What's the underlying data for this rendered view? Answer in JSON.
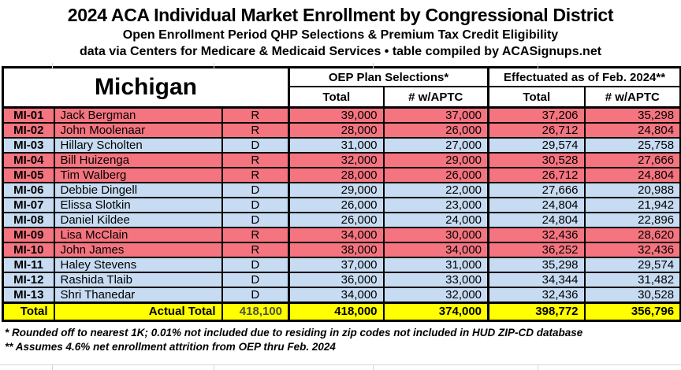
{
  "header": {
    "title": "2024 ACA Individual Market Enrollment by Congressional District",
    "subtitle1": "Open Enrollment Period QHP Selections & Premium Tax Credit Eligibility",
    "subtitle2": "data via Centers for Medicare & Medicaid Services • table compiled by ACASignups.net"
  },
  "chart_data": {
    "type": "table",
    "title": "2024 ACA Individual Market Enrollment by Congressional District",
    "state": "Michigan",
    "column_groups": [
      "OEP Plan Selections*",
      "Effectuated as of Feb. 2024**"
    ],
    "sub_headers": [
      "Total",
      "# w/APTC",
      "Total",
      "# w/APTC"
    ],
    "rows": [
      {
        "district": "MI-01",
        "rep": "Jack Bergman",
        "party": "R",
        "oep_total": "39,000",
        "oep_aptc": "37,000",
        "eff_total": "37,206",
        "eff_aptc": "35,298"
      },
      {
        "district": "MI-02",
        "rep": "John Moolenaar",
        "party": "R",
        "oep_total": "28,000",
        "oep_aptc": "26,000",
        "eff_total": "26,712",
        "eff_aptc": "24,804"
      },
      {
        "district": "MI-03",
        "rep": "Hillary Scholten",
        "party": "D",
        "oep_total": "31,000",
        "oep_aptc": "27,000",
        "eff_total": "29,574",
        "eff_aptc": "25,758"
      },
      {
        "district": "MI-04",
        "rep": "Bill Huizenga",
        "party": "R",
        "oep_total": "32,000",
        "oep_aptc": "29,000",
        "eff_total": "30,528",
        "eff_aptc": "27,666"
      },
      {
        "district": "MI-05",
        "rep": "Tim Walberg",
        "party": "R",
        "oep_total": "28,000",
        "oep_aptc": "26,000",
        "eff_total": "26,712",
        "eff_aptc": "24,804"
      },
      {
        "district": "MI-06",
        "rep": "Debbie Dingell",
        "party": "D",
        "oep_total": "29,000",
        "oep_aptc": "22,000",
        "eff_total": "27,666",
        "eff_aptc": "20,988"
      },
      {
        "district": "MI-07",
        "rep": "Elissa Slotkin",
        "party": "D",
        "oep_total": "26,000",
        "oep_aptc": "23,000",
        "eff_total": "24,804",
        "eff_aptc": "21,942"
      },
      {
        "district": "MI-08",
        "rep": "Daniel Kildee",
        "party": "D",
        "oep_total": "26,000",
        "oep_aptc": "24,000",
        "eff_total": "24,804",
        "eff_aptc": "22,896"
      },
      {
        "district": "MI-09",
        "rep": "Lisa McClain",
        "party": "R",
        "oep_total": "34,000",
        "oep_aptc": "30,000",
        "eff_total": "32,436",
        "eff_aptc": "28,620"
      },
      {
        "district": "MI-10",
        "rep": "John James",
        "party": "R",
        "oep_total": "38,000",
        "oep_aptc": "34,000",
        "eff_total": "36,252",
        "eff_aptc": "32,436"
      },
      {
        "district": "MI-11",
        "rep": "Haley Stevens",
        "party": "D",
        "oep_total": "37,000",
        "oep_aptc": "31,000",
        "eff_total": "35,298",
        "eff_aptc": "29,574"
      },
      {
        "district": "MI-12",
        "rep": "Rashida Tlaib",
        "party": "D",
        "oep_total": "36,000",
        "oep_aptc": "33,000",
        "eff_total": "34,344",
        "eff_aptc": "31,482"
      },
      {
        "district": "MI-13",
        "rep": "Shri Thanedar",
        "party": "D",
        "oep_total": "34,000",
        "oep_aptc": "32,000",
        "eff_total": "32,436",
        "eff_aptc": "30,528"
      }
    ],
    "total": {
      "label": "Total",
      "sublabel": "Actual Total",
      "actual_total": "418,100",
      "oep_total": "418,000",
      "oep_aptc": "374,000",
      "eff_total": "398,772",
      "eff_aptc": "356,796"
    }
  },
  "footnotes": {
    "line1": "* Rounded off to nearest 1K; 0.01% not included due to residing in zip codes not included in HUD ZIP-CD database",
    "line2": "** Assumes 4.6% net enrollment attrition from OEP thru Feb. 2024"
  },
  "colors": {
    "republican_row": "#F4747F",
    "democrat_row": "#C7DCF2",
    "total_row_bg": "#FFFF00",
    "actual_total_text": "#49513E",
    "border": "#000000"
  }
}
